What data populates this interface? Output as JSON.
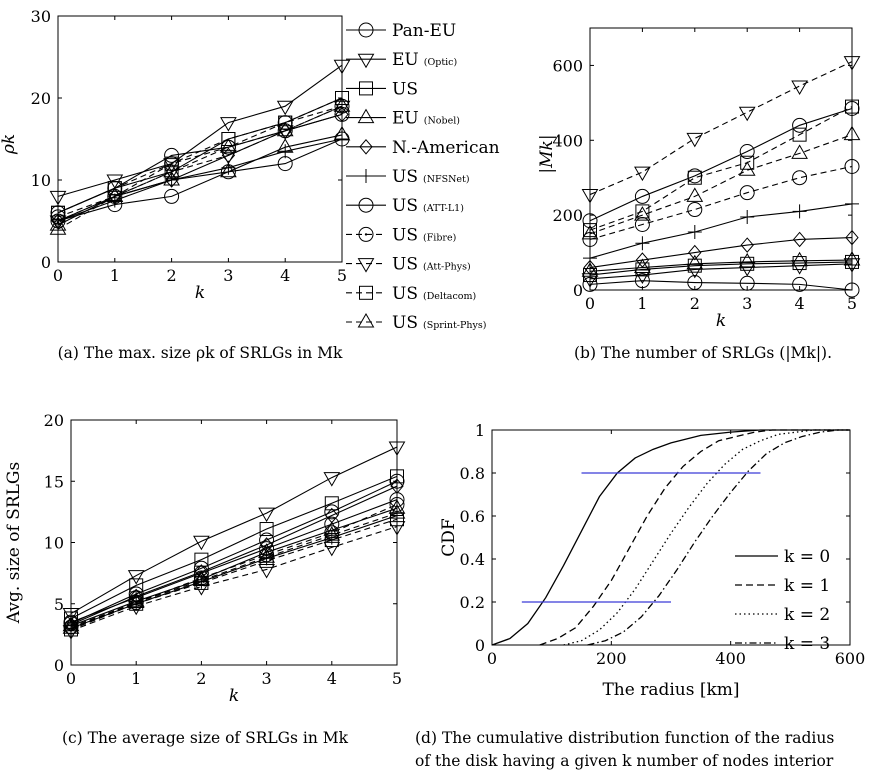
{
  "marker_kinds": [
    "circle",
    "tri-down",
    "square",
    "tri-up",
    "diamond",
    "plus",
    "circle",
    "circle",
    "tri-down",
    "square",
    "tri-up"
  ],
  "legend": [
    {
      "name": "Pan-EU",
      "sub": "",
      "dash": false,
      "marker": "circle"
    },
    {
      "name": "EU",
      "sub": "(Optic)",
      "dash": false,
      "marker": "tri-down"
    },
    {
      "name": "US",
      "sub": "",
      "dash": false,
      "marker": "square"
    },
    {
      "name": "EU",
      "sub": "(Nobel)",
      "dash": false,
      "marker": "tri-up"
    },
    {
      "name": "N.-American",
      "sub": "",
      "dash": false,
      "marker": "diamond"
    },
    {
      "name": "US",
      "sub": "(NFSNet)",
      "dash": false,
      "marker": "plus"
    },
    {
      "name": "US",
      "sub": "(ATT-L1)",
      "dash": false,
      "marker": "circle"
    },
    {
      "name": "US",
      "sub": "(Fibre)",
      "dash": true,
      "marker": "circle-dot"
    },
    {
      "name": "US",
      "sub": "(Att-Phys)",
      "dash": true,
      "marker": "tri-down"
    },
    {
      "name": "US",
      "sub": "(Deltacom)",
      "dash": true,
      "marker": "square"
    },
    {
      "name": "US",
      "sub": "(Sprint-Phys)",
      "dash": true,
      "marker": "tri-up"
    }
  ],
  "chart_data": [
    {
      "id": "a",
      "type": "line",
      "xlabel": "k",
      "ylabel": "ρk",
      "x": [
        0,
        1,
        2,
        3,
        4,
        5
      ],
      "xlim": [
        0,
        5
      ],
      "ylim": [
        0,
        30
      ],
      "xticks": [
        "0",
        "1",
        "2",
        "3",
        "4",
        "5"
      ],
      "yticks": [
        "0",
        "10",
        "20",
        "30"
      ],
      "caption": "(a)  The max. size ρk of SRLGs in Mk",
      "series": [
        {
          "values": [
            5,
            7,
            8,
            11,
            12,
            15
          ]
        },
        {
          "values": [
            8,
            10,
            12,
            17,
            19,
            24
          ]
        },
        {
          "values": [
            6,
            9,
            11,
            15,
            17,
            20
          ]
        },
        {
          "values": [
            4.5,
            8,
            10,
            11,
            14,
            15.5
          ]
        },
        {
          "values": [
            5,
            8,
            10,
            13,
            16,
            18
          ]
        },
        {
          "values": [
            5,
            7.5,
            10,
            11.5,
            13.5,
            15
          ]
        },
        {
          "values": [
            6,
            9,
            13,
            14,
            16,
            18
          ]
        },
        {
          "values": [
            5.5,
            8,
            12,
            14,
            17,
            19
          ]
        },
        {
          "values": [
            5,
            8,
            11,
            13,
            16,
            19
          ]
        },
        {
          "values": [
            6,
            9,
            12,
            15,
            17,
            20
          ]
        },
        {
          "values": [
            4,
            8,
            11,
            14,
            16,
            19
          ]
        }
      ]
    },
    {
      "id": "b",
      "type": "line",
      "xlabel": "k",
      "ylabel": "|Mk|",
      "x": [
        0,
        1,
        2,
        3,
        4,
        5
      ],
      "xlim": [
        0,
        5
      ],
      "ylim": [
        0,
        700
      ],
      "xticks": [
        "0",
        "1",
        "2",
        "3",
        "4",
        "5"
      ],
      "yticks": [
        "0",
        "200",
        "400",
        "600"
      ],
      "caption": "(b)  The number of SRLGs (|Mk|).",
      "series": [
        {
          "values": [
            15,
            25,
            20,
            18,
            15,
            0
          ]
        },
        {
          "values": [
            30,
            40,
            55,
            60,
            65,
            70
          ]
        },
        {
          "values": [
            40,
            55,
            65,
            70,
            72,
            75
          ]
        },
        {
          "values": [
            50,
            60,
            70,
            75,
            78,
            80
          ]
        },
        {
          "values": [
            60,
            80,
            100,
            120,
            135,
            140
          ]
        },
        {
          "values": [
            85,
            125,
            155,
            195,
            210,
            230
          ]
        },
        {
          "values": [
            185,
            250,
            305,
            370,
            440,
            485
          ]
        },
        {
          "values": [
            135,
            175,
            215,
            260,
            300,
            330
          ]
        },
        {
          "values": [
            255,
            315,
            405,
            475,
            545,
            610
          ]
        },
        {
          "values": [
            160,
            210,
            300,
            340,
            415,
            490
          ]
        },
        {
          "values": [
            150,
            200,
            250,
            320,
            365,
            415
          ]
        }
      ]
    },
    {
      "id": "c",
      "type": "line",
      "xlabel": "k",
      "ylabel": "Avg. size of SRLGs",
      "x": [
        0,
        1,
        2,
        3,
        4,
        5
      ],
      "xlim": [
        0,
        5
      ],
      "ylim": [
        0,
        20
      ],
      "xticks": [
        "0",
        "1",
        "2",
        "3",
        "4",
        "5"
      ],
      "yticks": [
        "0",
        "5",
        "10",
        "15",
        "20"
      ],
      "caption": "(c)  The average size of SRLGs in Mk",
      "series": [
        {
          "values": [
            3.5,
            5.5,
            7.5,
            9.5,
            11.5,
            13.5
          ]
        },
        {
          "values": [
            4.2,
            7.3,
            10.1,
            12.4,
            15.3,
            17.8
          ]
        },
        {
          "values": [
            3.8,
            6.5,
            8.6,
            11.1,
            13.2,
            15.4
          ]
        },
        {
          "values": [
            3.2,
            5.2,
            7,
            9.2,
            11,
            12.8
          ]
        },
        {
          "values": [
            3.3,
            5.6,
            7.6,
            9.8,
            12.2,
            14.6
          ]
        },
        {
          "values": [
            3,
            5,
            6.8,
            8.7,
            10.4,
            12.2
          ]
        },
        {
          "values": [
            3.4,
            5.8,
            7.9,
            10.2,
            12.5,
            15
          ]
        },
        {
          "values": [
            3.1,
            5.1,
            7.1,
            9,
            10.8,
            13.1
          ]
        },
        {
          "values": [
            2.8,
            4.8,
            6.4,
            7.8,
            9.6,
            11.3
          ]
        },
        {
          "values": [
            2.9,
            5,
            6.7,
            8.5,
            10.2,
            11.9
          ]
        },
        {
          "values": [
            3,
            5.1,
            6.9,
            8.8,
            10.6,
            12.4
          ]
        }
      ]
    },
    {
      "id": "d",
      "type": "line",
      "xlabel": "The radius [km]",
      "ylabel": "CDF",
      "xlim": [
        0,
        600
      ],
      "ylim": [
        0,
        1
      ],
      "xticks": [
        "0",
        "200",
        "400",
        "600"
      ],
      "yticks": [
        "0",
        "0.2",
        "0.4",
        "0.6",
        "0.8",
        "1"
      ],
      "caption_line1": "(d) The cumulative distribution function of the radius",
      "caption_line2": "of the disk having a given k number of nodes interior",
      "series": [
        {
          "name": "k = 0",
          "dash": "solid",
          "x": [
            0,
            30,
            60,
            90,
            120,
            150,
            180,
            210,
            240,
            270,
            300,
            350,
            400,
            450,
            500,
            600
          ],
          "values": [
            0,
            0.03,
            0.1,
            0.22,
            0.37,
            0.53,
            0.69,
            0.8,
            0.87,
            0.91,
            0.94,
            0.975,
            0.99,
            1,
            1,
            1
          ]
        },
        {
          "name": "k = 1",
          "dash": "dashed",
          "x": [
            80,
            110,
            140,
            170,
            200,
            230,
            260,
            290,
            320,
            350,
            380,
            410,
            440,
            470,
            500,
            600
          ],
          "values": [
            0,
            0.03,
            0.08,
            0.18,
            0.3,
            0.45,
            0.6,
            0.73,
            0.83,
            0.9,
            0.95,
            0.97,
            0.99,
            1,
            1,
            1
          ]
        },
        {
          "name": "k = 2",
          "dash": "dotted",
          "x": [
            120,
            150,
            180,
            210,
            240,
            270,
            300,
            330,
            360,
            390,
            420,
            450,
            480,
            510,
            540,
            600
          ],
          "values": [
            0,
            0.02,
            0.07,
            0.15,
            0.26,
            0.39,
            0.52,
            0.64,
            0.75,
            0.84,
            0.91,
            0.95,
            0.98,
            0.99,
            1,
            1
          ]
        },
        {
          "name": "k = 3",
          "dash": "dashdot",
          "x": [
            160,
            190,
            220,
            250,
            280,
            310,
            340,
            370,
            400,
            430,
            460,
            490,
            520,
            550,
            580,
            600
          ],
          "values": [
            0,
            0.02,
            0.06,
            0.13,
            0.23,
            0.35,
            0.48,
            0.6,
            0.71,
            0.81,
            0.89,
            0.94,
            0.97,
            0.99,
            1,
            1
          ]
        }
      ],
      "hlines": [
        {
          "y": 0.8,
          "x": [
            150,
            450
          ],
          "color": "#3b3bd6"
        },
        {
          "y": 0.2,
          "x": [
            50,
            300
          ],
          "color": "#3b3bd6"
        }
      ]
    }
  ]
}
